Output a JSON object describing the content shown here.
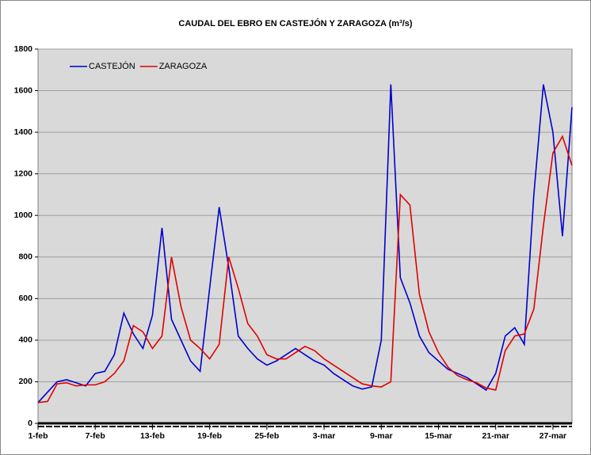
{
  "chart_data": {
    "type": "line",
    "title": "CAUDAL DEL EBRO EN CASTEJÓN Y ZARAGOZA (m³/s)",
    "categories": [
      "1-feb",
      null,
      null,
      null,
      null,
      null,
      "7-feb",
      null,
      null,
      null,
      null,
      null,
      "13-feb",
      null,
      null,
      null,
      null,
      null,
      "19-feb",
      null,
      null,
      null,
      null,
      null,
      "25-feb",
      null,
      null,
      null,
      null,
      null,
      "3-mar",
      null,
      null,
      null,
      null,
      null,
      "9-mar",
      null,
      null,
      null,
      null,
      null,
      "15-mar",
      null,
      null,
      null,
      null,
      null,
      "21-mar",
      null,
      null,
      null,
      null,
      null,
      "27-mar",
      null,
      null
    ],
    "series": [
      {
        "name": "CASTEJÓN",
        "color": "#0000cc",
        "values": [
          100,
          150,
          200,
          210,
          195,
          180,
          240,
          250,
          330,
          530,
          430,
          360,
          520,
          940,
          500,
          400,
          300,
          250,
          650,
          1040,
          750,
          420,
          360,
          310,
          280,
          300,
          330,
          360,
          330,
          300,
          280,
          240,
          210,
          180,
          165,
          175,
          400,
          1630,
          700,
          580,
          420,
          340,
          300,
          260,
          240,
          220,
          190,
          160,
          240,
          420,
          460,
          380,
          1100,
          1630,
          1400,
          900,
          1520
        ]
      },
      {
        "name": "ZARAGOZA",
        "color": "#e00000",
        "values": [
          100,
          105,
          190,
          195,
          180,
          185,
          185,
          200,
          240,
          300,
          470,
          440,
          360,
          420,
          800,
          560,
          400,
          360,
          310,
          380,
          800,
          650,
          480,
          420,
          330,
          310,
          310,
          340,
          370,
          350,
          310,
          280,
          250,
          220,
          190,
          180,
          175,
          200,
          1100,
          1050,
          620,
          440,
          340,
          270,
          230,
          210,
          195,
          170,
          160,
          350,
          420,
          430,
          550,
          950,
          1300,
          1380,
          1240
        ]
      }
    ],
    "ylim": [
      0,
      1800
    ],
    "yticks": [
      0,
      200,
      400,
      600,
      800,
      1000,
      1200,
      1400,
      1600,
      1800
    ],
    "grid": true,
    "legend": "upper left"
  }
}
